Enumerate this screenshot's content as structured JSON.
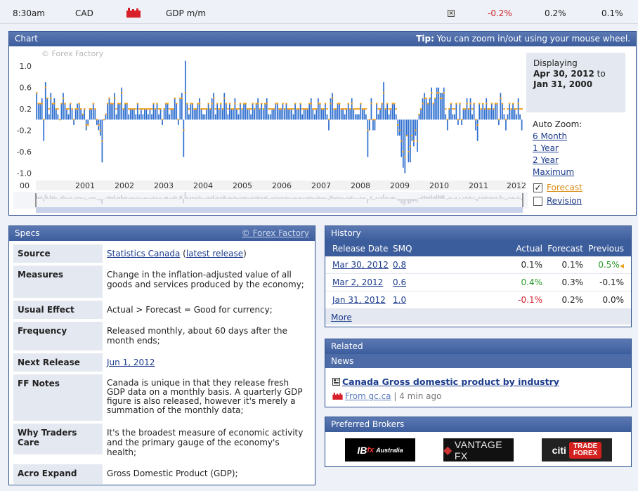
{
  "event": {
    "time": "8:30am",
    "currency": "CAD",
    "name": "GDP m/m",
    "actual": "-0.2%",
    "forecast": "0.2%",
    "previous": "0.1%",
    "actual_color": "#d0202a"
  },
  "chart": {
    "title": "Chart",
    "tip_label": "Tip:",
    "tip_text": "You can zoom in/out using your mouse wheel.",
    "watermark": "© Forex Factory",
    "displaying_label": "Displaying",
    "range_start": "Apr 30, 2012",
    "range_to": "to",
    "range_end": "Jan 31, 2000",
    "auto_zoom_label": "Auto Zoom:",
    "zoom_options": [
      "6 Month",
      "1 Year",
      "2 Year",
      "Maximum"
    ],
    "forecast_label": "Forecast",
    "revision_label": "Revision",
    "forecast_checked": true,
    "revision_checked": false,
    "bar_color": "#2f6fcf",
    "forecast_color": "#f0a020"
  },
  "chart_data": {
    "type": "bar",
    "ylim": [
      -1.1,
      1.2
    ],
    "y_ticks": [
      "1.0",
      "0.6",
      "0.2",
      "-0.2",
      "-0.6",
      "-1.0"
    ],
    "x_ticks": [
      "00",
      "2001",
      "2002",
      "2003",
      "2004",
      "2005",
      "2006",
      "2007",
      "2008",
      "2009",
      "2010",
      "2011",
      "2012"
    ],
    "series": [
      {
        "values": [
          0.5,
          0.3,
          0.3,
          0.4,
          -0.4,
          0.7,
          0.4,
          0.1,
          0.5,
          0.3,
          0.4,
          0.2,
          0.1,
          0.0,
          0.3,
          0.5,
          0.3,
          0.2,
          0.1,
          0.3,
          0.2,
          -0.1,
          0.2,
          0.3,
          0.3,
          0.2,
          0.1,
          0.2,
          -0.2,
          -0.1,
          0.2,
          0.2,
          0.3,
          0.2,
          -0.1,
          -0.2,
          -0.3,
          -0.8,
          0.0,
          0.1,
          0.3,
          0.4,
          0.3,
          0.3,
          0.5,
          0.1,
          0.3,
          0.3,
          0.6,
          0.2,
          0.3,
          0.3,
          0.1,
          0.2,
          0.2,
          0.2,
          0.1,
          0.3,
          0.1,
          0.2,
          0.1,
          0.2,
          0.2,
          0.1,
          0.2,
          0.1,
          0.3,
          0.2,
          0.3,
          0.1,
          0.2,
          -0.1,
          0.2,
          0.3,
          0.3,
          0.1,
          0.2,
          0.2,
          0.4,
          0.3,
          -0.1,
          0.4,
          0.5,
          -0.7,
          1.1,
          0.3,
          0.1,
          0.3,
          0.3,
          0.2,
          0.2,
          0.3,
          0.4,
          0.2,
          0.1,
          0.1,
          0.2,
          0.3,
          0.2,
          0.4,
          0.5,
          0.1,
          0.3,
          0.2,
          0.3,
          0.2,
          0.5,
          0.3,
          0.1,
          0.3,
          0.2,
          0.2,
          0.4,
          0.2,
          0.1,
          0.3,
          0.2,
          0.3,
          0.3,
          0.2,
          0.2,
          0.1,
          0.3,
          0.2,
          0.3,
          0.4,
          0.2,
          0.3,
          0.2,
          0.3,
          0.4,
          0.1,
          0.1,
          0.2,
          0.2,
          0.3,
          0.3,
          0.2,
          0.2,
          0.3,
          0.2,
          0.3,
          0.2,
          0.2,
          0.2,
          0.1,
          0.3,
          0.2,
          0.2,
          0.3,
          0.1,
          0.2,
          0.2,
          0.2,
          0.3,
          0.4,
          0.2,
          0.1,
          0.2,
          0.4,
          0.3,
          0.2,
          0.2,
          0.3,
          0.1,
          -0.2,
          0.4,
          0.5,
          0.2,
          0.2,
          0.3,
          0.3,
          0.2,
          0.2,
          0.1,
          0.2,
          0.3,
          0.2,
          0.4,
          0.2,
          0.1,
          0.1,
          0.1,
          0.3,
          0.2,
          0.2,
          0.1,
          -0.7,
          -0.2,
          0.4,
          -0.2,
          -0.2,
          0.3,
          0.1,
          0.2,
          0.3,
          0.7,
          0.2,
          0.3,
          0.1,
          0.2,
          0.3,
          0.3,
          0.1,
          -0.3,
          -0.3,
          -0.7,
          -0.9,
          -1.0,
          -0.3,
          -0.8,
          -0.8,
          -0.4,
          -0.5,
          -0.3,
          -0.6,
          0.1,
          0.2,
          0.4,
          0.5,
          0.4,
          0.3,
          0.4,
          0.6,
          0.3,
          0.4,
          0.6,
          0.6,
          0.5,
          0.5,
          0.6,
          0.1,
          -0.2,
          0.2,
          0.3,
          0.1,
          0.1,
          0.3,
          -0.1,
          0.3,
          -0.1,
          0.2,
          0.2,
          0.4,
          0.2,
          0.4,
          0.1,
          0.3,
          -0.2,
          -0.4,
          0.3,
          0.2,
          0.3,
          0.2,
          0.4,
          0.2,
          0.2,
          0.3,
          0.2,
          0.3,
          0.3,
          -0.1,
          0.5,
          0.3,
          0.1,
          -0.2,
          0.1,
          0.3,
          0.2,
          0.3,
          0.2,
          0.1,
          0.4,
          0.1,
          -0.2
        ],
        "forecast": [
          0.5,
          0.3,
          0.3,
          0.3,
          0.0,
          0.6,
          0.4,
          0.2,
          0.4,
          0.3,
          0.3,
          0.2,
          0.2,
          0.0,
          0.3,
          0.4,
          0.3,
          0.2,
          0.2,
          0.3,
          0.2,
          0.0,
          0.2,
          0.2,
          0.3,
          0.2,
          0.1,
          0.2,
          -0.1,
          -0.1,
          0.2,
          0.2,
          0.3,
          0.2,
          0.0,
          -0.1,
          -0.2,
          -0.4,
          0.0,
          0.1,
          0.3,
          0.4,
          0.3,
          0.3,
          0.4,
          0.2,
          0.3,
          0.3,
          0.5,
          0.2,
          0.3,
          0.3,
          0.2,
          0.2,
          0.2,
          0.2,
          0.2,
          0.3,
          0.2,
          0.2,
          0.2,
          0.2,
          0.2,
          0.2,
          0.2,
          0.2,
          0.3,
          0.2,
          0.3,
          0.2,
          0.2,
          0.0,
          0.2,
          0.3,
          0.3,
          0.2,
          0.2,
          0.2,
          0.4,
          0.3,
          0.0,
          0.4,
          0.4,
          -0.2,
          0.5,
          0.3,
          0.2,
          0.3,
          0.3,
          0.2,
          0.2,
          0.3,
          0.3,
          0.2,
          0.2,
          0.2,
          0.2,
          0.3,
          0.2,
          0.3,
          0.4,
          0.2,
          0.3,
          0.2,
          0.3,
          0.2,
          0.4,
          0.3,
          0.2,
          0.3,
          0.2,
          0.2,
          0.3,
          0.2,
          0.2,
          0.3,
          0.2,
          0.3,
          0.3,
          0.2,
          0.2,
          0.2,
          0.3,
          0.2,
          0.3,
          0.3,
          0.2,
          0.3,
          0.2,
          0.3,
          0.3,
          0.2,
          0.2,
          0.2,
          0.2,
          0.3,
          0.3,
          0.2,
          0.2,
          0.3,
          0.2,
          0.3,
          0.2,
          0.2,
          0.2,
          0.2,
          0.3,
          0.2,
          0.2,
          0.3,
          0.2,
          0.2,
          0.2,
          0.2,
          0.3,
          0.3,
          0.2,
          0.2,
          0.2,
          0.3,
          0.3,
          0.2,
          0.2,
          0.3,
          0.2,
          0.0,
          0.3,
          0.4,
          0.2,
          0.2,
          0.3,
          0.3,
          0.2,
          0.2,
          0.2,
          0.2,
          0.3,
          0.2,
          0.3,
          0.2,
          0.2,
          0.2,
          0.2,
          0.3,
          0.2,
          0.2,
          0.2,
          -0.2,
          0.0,
          0.3,
          0.0,
          0.0,
          0.3,
          0.2,
          0.2,
          0.3,
          0.5,
          0.2,
          0.3,
          0.2,
          0.2,
          0.3,
          0.3,
          0.2,
          -0.1,
          -0.2,
          -0.4,
          -0.6,
          -0.7,
          -0.3,
          -0.6,
          -0.5,
          -0.3,
          -0.4,
          -0.2,
          -0.4,
          0.1,
          0.2,
          0.3,
          0.4,
          0.4,
          0.3,
          0.4,
          0.5,
          0.3,
          0.4,
          0.5,
          0.5,
          0.4,
          0.4,
          0.5,
          0.2,
          0.0,
          0.2,
          0.3,
          0.2,
          0.2,
          0.3,
          0.0,
          0.3,
          0.0,
          0.2,
          0.2,
          0.3,
          0.2,
          0.3,
          0.2,
          0.3,
          0.0,
          -0.1,
          0.3,
          0.2,
          0.3,
          0.2,
          0.3,
          0.2,
          0.2,
          0.3,
          0.2,
          0.3,
          0.3,
          0.0,
          0.4,
          0.3,
          0.2,
          0.0,
          0.2,
          0.3,
          0.2,
          0.3,
          0.2,
          0.2,
          0.3,
          0.2,
          0.2
        ]
      }
    ]
  },
  "specs": {
    "title": "Specs",
    "ff_link": "© Forex Factory",
    "rows": [
      {
        "key": "Source",
        "value": "",
        "link1": "Statistics Canada",
        "paren_open": " (",
        "link2": "latest release",
        "paren_close": ")"
      },
      {
        "key": "Measures",
        "value": "Change in the inflation-adjusted value of all goods and services produced by the economy;"
      },
      {
        "key": "Usual Effect",
        "value": "Actual > Forecast = Good for currency;"
      },
      {
        "key": "Frequency",
        "value": "Released monthly, about 60 days after the month ends;"
      },
      {
        "key": "Next Release",
        "link1": "Jun 1, 2012"
      },
      {
        "key": "FF Notes",
        "value": "Canada is unique in that they release fresh GDP data on a monthly basis. A quarterly GDP figure is also released, however it's merely a summation of the monthly data;"
      },
      {
        "key": "Why Traders Care",
        "value": "It's the broadest measure of economic activity and the primary gauge of the economy's health;"
      },
      {
        "key": "Acro Expand",
        "value": "Gross Domestic Product (GDP);"
      }
    ]
  },
  "history": {
    "title": "History",
    "columns": [
      "Release Date",
      "SMQ",
      "Actual",
      "Forecast",
      "Previous"
    ],
    "rows": [
      {
        "date": "Mar 30, 2012",
        "smq": "0.8",
        "actual": "0.1%",
        "forecast": "0.1%",
        "previous": "0.5%",
        "actual_color": "#222",
        "previous_color": "#2a9a2a"
      },
      {
        "date": "Mar 2, 2012",
        "smq": "0.6",
        "actual": "0.4%",
        "forecast": "0.3%",
        "previous": "-0.1%",
        "actual_color": "#2a9a2a",
        "previous_color": "#222"
      },
      {
        "date": "Jan 31, 2012",
        "smq": "1.0",
        "actual": "-0.1%",
        "forecast": "0.2%",
        "previous": "0.0%",
        "actual_color": "#d0202a",
        "previous_color": "#222"
      }
    ],
    "more": "More"
  },
  "related": {
    "title": "Related",
    "news_label": "News",
    "headline": "Canada Gross domestic product by industry",
    "source": "From gc.ca",
    "separator": "|",
    "age": "4 min ago"
  },
  "brokers": {
    "title": "Preferred Brokers",
    "items": [
      "IBFX Australia",
      "VANTAGE FX",
      "TRADE FOREX"
    ],
    "ibfx_mark": "IB",
    "ibfx_fx": "fx",
    "ibfx_sub": "Australia",
    "citi": "citi",
    "trade_forex_1": "TRADE",
    "trade_forex_2": "FOREX"
  }
}
